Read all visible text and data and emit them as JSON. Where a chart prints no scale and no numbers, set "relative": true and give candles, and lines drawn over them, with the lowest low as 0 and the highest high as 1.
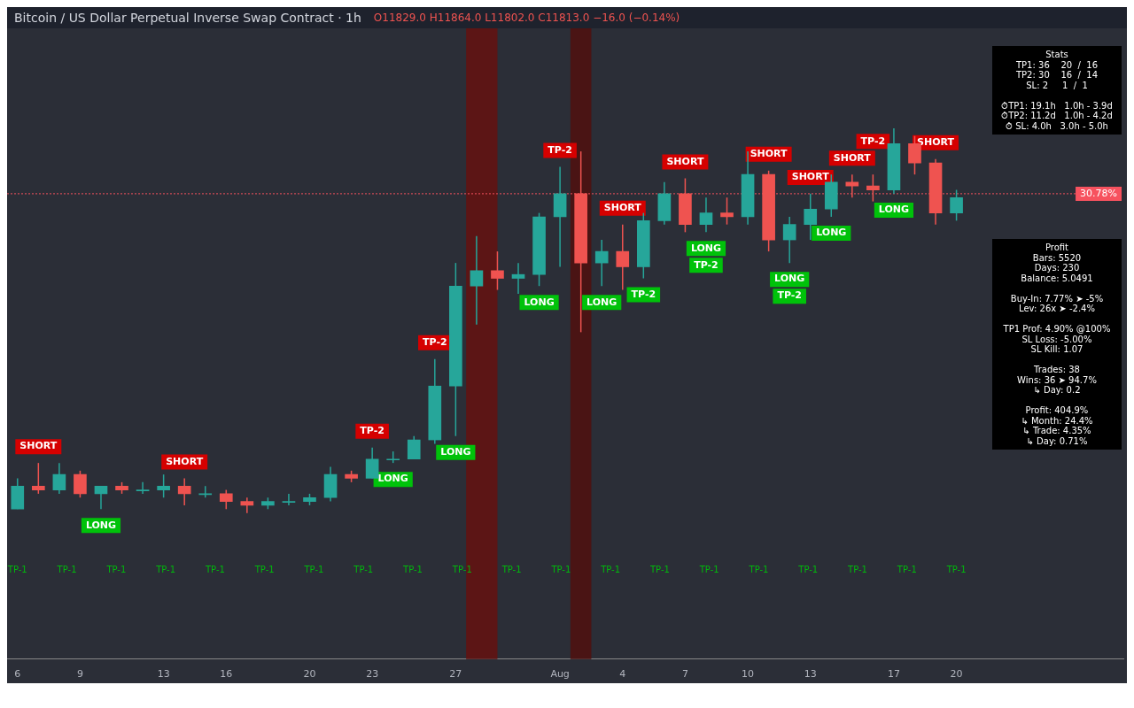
{
  "chart_data": {
    "type": "candlestick",
    "title": "Bitcoin / US Dollar Perpetual Inverse Swap Contract · 1h",
    "subtitle": "O11829.0 H11864.0 L11802.0 C11813.0 −16.0 (−0.14%)",
    "relative": true,
    "x": [
      "--07-06",
      "--07-07",
      "--07-08",
      "--07-09",
      "--07-10",
      "--07-11",
      "--07-12",
      "--07-13",
      "--07-14",
      "--07-15",
      "--07-16",
      "--07-17",
      "--07-18",
      "--07-19",
      "--07-20",
      "--07-21",
      "--07-22",
      "--07-23",
      "--07-24",
      "--07-25",
      "--07-26",
      "--07-27",
      "--07-28",
      "--07-29",
      "--07-30",
      "--07-31",
      "--08-01",
      "--08-02",
      "--08-03",
      "--08-04",
      "--08-05",
      "--08-06",
      "--08-07",
      "--08-08",
      "--08-09",
      "--08-10",
      "--08-11",
      "--08-12",
      "--08-13",
      "--08-14",
      "--08-15",
      "--08-16",
      "--08-17",
      "--08-18",
      "--08-19",
      "--08-20"
    ],
    "ohlc": [
      [
        0.01,
        0.09,
        0.01,
        0.07
      ],
      [
        0.07,
        0.13,
        0.05,
        0.06
      ],
      [
        0.06,
        0.13,
        0.05,
        0.1
      ],
      [
        0.1,
        0.11,
        0.04,
        0.05
      ],
      [
        0.05,
        0.07,
        0.01,
        0.07
      ],
      [
        0.07,
        0.08,
        0.05,
        0.06
      ],
      [
        0.06,
        0.08,
        0.05,
        0.06
      ],
      [
        0.06,
        0.1,
        0.04,
        0.07
      ],
      [
        0.07,
        0.09,
        0.02,
        0.05
      ],
      [
        0.05,
        0.07,
        0.04,
        0.05
      ],
      [
        0.05,
        0.06,
        0.01,
        0.03
      ],
      [
        0.03,
        0.04,
        0,
        0.02
      ],
      [
        0.02,
        0.04,
        0.01,
        0.03
      ],
      [
        0.03,
        0.05,
        0.02,
        0.03
      ],
      [
        0.03,
        0.05,
        0.02,
        0.04
      ],
      [
        0.04,
        0.12,
        0.03,
        0.1
      ],
      [
        0.1,
        0.11,
        0.08,
        0.09
      ],
      [
        0.09,
        0.17,
        0.09,
        0.14
      ],
      [
        0.14,
        0.16,
        0.13,
        0.14
      ],
      [
        0.14,
        0.2,
        0.14,
        0.19
      ],
      [
        0.19,
        0.4,
        0.18,
        0.33
      ],
      [
        0.33,
        0.65,
        0.2,
        0.59
      ],
      [
        0.59,
        0.72,
        0.49,
        0.63
      ],
      [
        0.63,
        0.68,
        0.58,
        0.61
      ],
      [
        0.61,
        0.65,
        0.57,
        0.62
      ],
      [
        0.62,
        0.78,
        0.59,
        0.77
      ],
      [
        0.77,
        0.9,
        0.64,
        0.83
      ],
      [
        0.83,
        0.94,
        0.47,
        0.65
      ],
      [
        0.65,
        0.71,
        0.59,
        0.68
      ],
      [
        0.68,
        0.75,
        0.58,
        0.64
      ],
      [
        0.64,
        0.78,
        0.61,
        0.76
      ],
      [
        0.76,
        0.86,
        0.75,
        0.83
      ],
      [
        0.83,
        0.87,
        0.73,
        0.75
      ],
      [
        0.75,
        0.82,
        0.73,
        0.78
      ],
      [
        0.78,
        0.82,
        0.75,
        0.77
      ],
      [
        0.77,
        0.94,
        0.75,
        0.88
      ],
      [
        0.88,
        0.89,
        0.68,
        0.71
      ],
      [
        0.71,
        0.77,
        0.65,
        0.75
      ],
      [
        0.75,
        0.83,
        0.71,
        0.79
      ],
      [
        0.79,
        0.88,
        0.77,
        0.86
      ],
      [
        0.86,
        0.88,
        0.82,
        0.85
      ],
      [
        0.85,
        0.88,
        0.81,
        0.84
      ],
      [
        0.84,
        1.0,
        0.83,
        0.96
      ],
      [
        0.96,
        0.98,
        0.88,
        0.91
      ],
      [
        0.91,
        0.92,
        0.75,
        0.78
      ],
      [
        0.78,
        0.84,
        0.76,
        0.82
      ]
    ],
    "colors": [
      "#26a69a",
      "#ef5350",
      "#26a69a",
      "#ef5350",
      "#26a69a",
      "#ef5350",
      "#26a69a",
      "#26a69a",
      "#ef5350",
      "#26a69a",
      "#ef5350",
      "#ef5350",
      "#26a69a",
      "#26a69a",
      "#26a69a",
      "#26a69a",
      "#ef5350",
      "#26a69a",
      "#26a69a",
      "#26a69a",
      "#26a69a",
      "#26a69a",
      "#26a69a",
      "#ef5350",
      "#26a69a",
      "#26a69a",
      "#26a69a",
      "#ef5350",
      "#26a69a",
      "#ef5350",
      "#26a69a",
      "#26a69a",
      "#ef5350",
      "#26a69a",
      "#ef5350",
      "#26a69a",
      "#ef5350",
      "#26a69a",
      "#26a69a",
      "#26a69a",
      "#ef5350",
      "#ef5350",
      "#26a69a",
      "#ef5350",
      "#ef5350",
      "#26a69a"
    ],
    "xlim": [
      "--07-05T12:00",
      "--08-28"
    ],
    "xticks": [
      {
        "value": "--07-06",
        "label": "6"
      },
      {
        "value": "--07-09",
        "label": "9"
      },
      {
        "value": "--07-13",
        "label": "13"
      },
      {
        "value": "--07-16",
        "label": "16"
      },
      {
        "value": "--07-20",
        "label": "20"
      },
      {
        "value": "--07-23",
        "label": "23"
      },
      {
        "value": "--07-27",
        "label": "27"
      },
      {
        "value": "--08-01",
        "label": "Aug"
      },
      {
        "value": "--08-04",
        "label": "4"
      },
      {
        "value": "--08-07",
        "label": "7"
      },
      {
        "value": "--08-10",
        "label": "10"
      },
      {
        "value": "--08-13",
        "label": "13"
      },
      {
        "value": "--08-17",
        "label": "17"
      },
      {
        "value": "--08-20",
        "label": "20"
      }
    ],
    "ref_lines": [
      {
        "axis": "y",
        "value": 0.83,
        "color": "#f7525f",
        "line_style": "dotted"
      }
    ],
    "bands": [
      {
        "axis": "x",
        "from": "--07-27T12:00",
        "to": "--07-29T00:00",
        "color": "#5c1515"
      },
      {
        "axis": "x",
        "from": "--08-01T12:00",
        "to": "--08-02T12:00",
        "color": "#4a1414"
      }
    ],
    "annotations": [
      "Stats\nTP1: 36    20  /  16\nTP2: 30    16  /  14\nSL: 2     1  /  1\n\n⏱TP1: 19.1h   1.0h - 3.9d\n⏱TP2: 11.2d   1.0h - 4.2d\n⏱ SL: 4.0h   3.0h - 5.0h",
      "Profit\nBars: 5520\nDays: 230\nBalance: 5.0491\n\nBuy-In: 7.77% ➤ -5%\nLev: 26x ➤ -2.4%\n\nTP1 Prof: 4.90% @100%\nSL Loss: -5.00%\nSL Kill: 1.07\n\nTrades: 38\nWins: 36 ➤ 94.7%\n↳ Day: 0.2\n\nProfit: 404.9%\n↳ Month: 24.4%\n↳ Trade: 4.35%\n↳ Day: 0.71%",
      {
        "text": "30.78%",
        "y": 0.83
      },
      {
        "text": "SHORT",
        "x": "--07-07",
        "y": 0.13
      },
      {
        "text": "SHORT",
        "x": "--07-14",
        "y": 0.09
      },
      {
        "text": "SHORT",
        "x": "--08-04",
        "y": 0.75
      },
      {
        "text": "SHORT",
        "x": "--08-07",
        "y": 0.87
      },
      {
        "text": "SHORT",
        "x": "--08-11",
        "y": 0.89
      },
      {
        "text": "SHORT",
        "x": "--08-13",
        "y": 0.83
      },
      {
        "text": "SHORT",
        "x": "--08-15",
        "y": 0.88
      },
      {
        "text": "SHORT",
        "x": "--08-19",
        "y": 0.92
      },
      {
        "text": "LONG",
        "x": "--07-10",
        "y": 0.01
      },
      {
        "text": "LONG",
        "x": "--07-24",
        "y": 0.13
      },
      {
        "text": "LONG",
        "x": "--07-27",
        "y": 0.2
      },
      {
        "text": "LONG",
        "x": "--07-31",
        "y": 0.59
      },
      {
        "text": "LONG",
        "x": "--08-03",
        "y": 0.59
      },
      {
        "text": "LONG",
        "x": "--08-08",
        "y": 0.73
      },
      {
        "text": "LONG",
        "x": "--08-12",
        "y": 0.65
      },
      {
        "text": "LONG",
        "x": "--08-14",
        "y": 0.77
      },
      {
        "text": "LONG",
        "x": "--08-17",
        "y": 0.83
      },
      {
        "text": "TP-2",
        "x": "--07-23",
        "y": 0.17
      },
      {
        "text": "TP-2",
        "x": "--07-26",
        "y": 0.4
      },
      {
        "text": "TP-2",
        "x": "--08-01",
        "y": 0.9
      },
      {
        "text": "TP-2",
        "x": "--08-05",
        "y": 0.61
      },
      {
        "text": "TP-2",
        "x": "--08-08",
        "y": 0.73
      },
      {
        "text": "TP-2",
        "x": "--08-12",
        "y": 0.65
      },
      {
        "text": "TP-2",
        "x": "--08-16",
        "y": 0.88
      },
      "TP-1",
      "TP-1",
      "TP-1",
      "TP-1",
      "TP-1",
      "TP-1",
      "TP-1",
      "TP-1",
      "TP-1",
      "TP-1",
      "TP-1",
      "TP-1",
      "TP-1",
      "TP-1",
      "TP-1",
      "TP-1",
      "TP-1",
      "TP-1",
      "TP-1",
      "TP-1"
    ]
  }
}
